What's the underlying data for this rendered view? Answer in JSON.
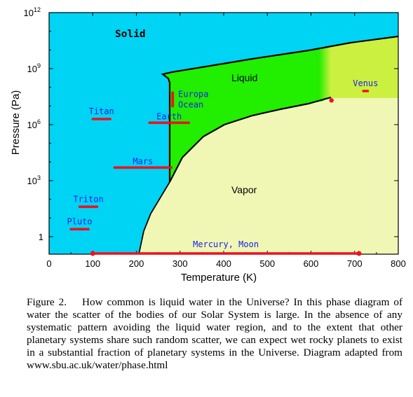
{
  "chart_data": {
    "type": "phase-diagram",
    "xlabel": "Temperature (K)",
    "ylabel": "Pressure (Pa)",
    "xlim": [
      0,
      800
    ],
    "ylim_log10": [
      -1,
      12
    ],
    "y_scale": "log",
    "x_ticks": [
      "0",
      "100",
      "200",
      "300",
      "400",
      "500",
      "600",
      "700",
      "800"
    ],
    "y_ticks": [
      {
        "exp": 12,
        "base": "10",
        "sup": "12"
      },
      {
        "exp": 9,
        "base": "10",
        "sup": "9"
      },
      {
        "exp": 6,
        "base": "10",
        "sup": "6"
      },
      {
        "exp": 3,
        "base": "10",
        "sup": "3"
      },
      {
        "exp": 0,
        "base": "1",
        "sup": ""
      }
    ],
    "regions": [
      {
        "name": "solid",
        "label": "Solid",
        "color": "#00d4f4"
      },
      {
        "name": "liquid",
        "label": "Liquid",
        "color": "#22ee00"
      },
      {
        "name": "vapor",
        "label": "Vapor",
        "color": "#f0f7b4"
      },
      {
        "name": "supercritical",
        "label": "",
        "color": "#ccf040"
      }
    ],
    "triple_point": {
      "T": 273,
      "log10P": 2.8
    },
    "critical_point": {
      "T": 647,
      "log10P": 7.3
    },
    "bodies": [
      {
        "name": "Titan",
        "T_min": 100,
        "T_max": 140,
        "log10P": 6.3
      },
      {
        "name": "Earth",
        "T_min": 230,
        "T_max": 320,
        "log10P": 6.1
      },
      {
        "name": "Europa Ocean",
        "T_min": 283,
        "T_max": 283,
        "log10P_min": 7.0,
        "log10P_max": 7.7
      },
      {
        "name": "Mars",
        "T_min": 150,
        "T_max": 280,
        "log10P": 3.7
      },
      {
        "name": "Venus",
        "T_min": 720,
        "T_max": 730,
        "log10P": 7.8
      },
      {
        "name": "Triton",
        "T_min": 70,
        "T_max": 110,
        "log10P": 1.6
      },
      {
        "name": "Pluto",
        "T_min": 50,
        "T_max": 90,
        "log10P": 0.4
      },
      {
        "name": "Mercury, Moon",
        "T_min": 100,
        "T_max": 710,
        "log10P": -0.9
      }
    ]
  },
  "caption": {
    "number": "Figure 2.",
    "text": "How common is liquid water in the Universe? In this phase diagram of water the scatter of the bodies of our Solar System is large. In the absence of any systematic pattern avoiding the liquid water region, and to the extent that other planetary systems share such random scatter, we can expect wet rocky planets to exist in a substantial fraction of planetary systems in the Universe. Diagram adapted from www.sbu.ac.uk/water/phase.html"
  },
  "colors": {
    "solid": "#00d4f4",
    "liquid": "#22ee00",
    "vapor": "#f0f7b4",
    "supercritical": "#ccf040",
    "body_marker": "#ee1122",
    "body_label": "#1a22e6"
  }
}
